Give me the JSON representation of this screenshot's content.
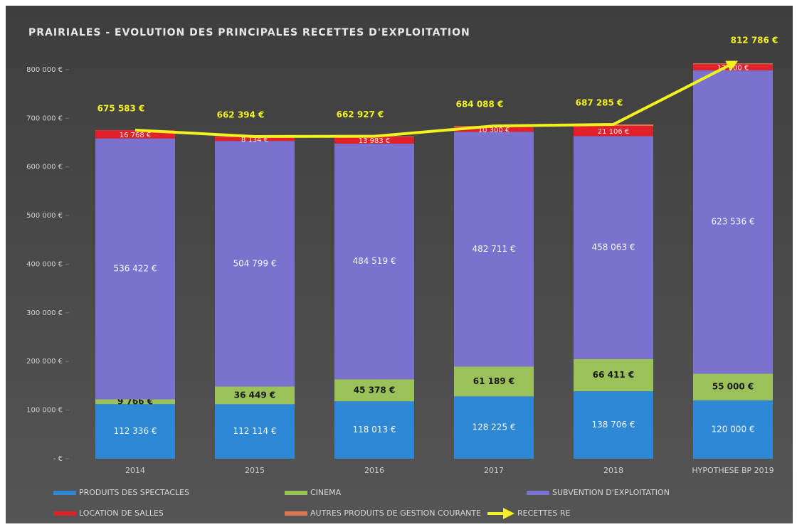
{
  "chart_data": {
    "type": "stacked_bar_line",
    "title": "PRAIRIALES - EVOLUTION DES PRINCIPALES RECETTES D'EXPLOITATION",
    "categories": [
      "2014",
      "2015",
      "2016",
      "2017",
      "2018",
      "HYPOTHESE BP 2019"
    ],
    "ylim": [
      0,
      870000
    ],
    "yticks": [
      {
        "value": 0,
        "label": "- €"
      },
      {
        "value": 100000,
        "label": "100 000 €"
      },
      {
        "value": 200000,
        "label": "200 000 €"
      },
      {
        "value": 300000,
        "label": "300 000 €"
      },
      {
        "value": 400000,
        "label": "400 000 €"
      },
      {
        "value": 500000,
        "label": "500 000 €"
      },
      {
        "value": 600000,
        "label": "600 000 €"
      },
      {
        "value": 700000,
        "label": "700 000 €"
      },
      {
        "value": 800000,
        "label": "800 000 €"
      }
    ],
    "series": [
      {
        "name": "PRODUITS DES SPECTACLES",
        "color": "#2f88d4",
        "values": [
          112336,
          112114,
          118013,
          128225,
          138706,
          120000
        ],
        "value_labels": [
          "112 336 €",
          "112 114 €",
          "118 013 €",
          "128 225 €",
          "138 706 €",
          "120 000 €"
        ]
      },
      {
        "name": "CINEMA",
        "color": "#9bc25a",
        "values": [
          9766,
          36449,
          45378,
          61189,
          66411,
          55000
        ],
        "value_labels": [
          "9 766 €",
          "36 449 €",
          "45 378 €",
          "61 189 €",
          "66 411 €",
          "55 000 €"
        ]
      },
      {
        "name": "SUBVENTION D'EXPLOITATION",
        "color": "#7a72cc",
        "values": [
          536422,
          504799,
          484519,
          482711,
          458063,
          623536
        ],
        "value_labels": [
          "536 422 €",
          "504 799 €",
          "484 519 €",
          "482 711 €",
          "458 063 €",
          "623 536 €"
        ]
      },
      {
        "name": "LOCATION DE SALLES",
        "color": "#e2202a",
        "values": [
          16768,
          8134,
          13983,
          10300,
          21106,
          12500
        ],
        "value_labels": [
          "16 768 €",
          "8 134 €",
          "13 983 €",
          "10 300 €",
          "21 106 €",
          "12 500 €"
        ]
      },
      {
        "name": "AUTRES PRODUITS DE GESTION COURANTE",
        "color": "#e0764e",
        "values": [
          291,
          898,
          1034,
          1663,
          3000,
          1750
        ]
      }
    ],
    "line": {
      "name": "RECETTES RE",
      "color": "#f2f21e",
      "values": [
        675583,
        662394,
        662927,
        684088,
        687285,
        812786
      ],
      "value_labels": [
        "675 583 €",
        "662 394 €",
        "662 927 €",
        "684 088 €",
        "687 285 €",
        "812 786 €"
      ]
    }
  }
}
